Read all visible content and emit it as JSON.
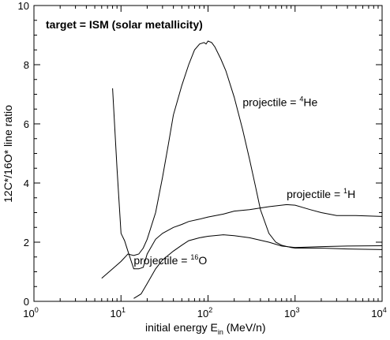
{
  "chart_data": {
    "type": "line",
    "title": "",
    "annotation_title": "target = ISM (solar metallicity)",
    "xlabel_main": "initial energy E",
    "xlabel_sub": "in",
    "xlabel_unit": " (MeV/n)",
    "ylabel": "12C*/16O* line ratio",
    "xscale": "log",
    "xlim": [
      1,
      10000
    ],
    "ylim": [
      0,
      10
    ],
    "x_ticks": [
      {
        "value": 1,
        "base": "10",
        "exp": "0"
      },
      {
        "value": 10,
        "base": "10",
        "exp": "1"
      },
      {
        "value": 100,
        "base": "10",
        "exp": "2"
      },
      {
        "value": 1000,
        "base": "10",
        "exp": "3"
      },
      {
        "value": 10000,
        "base": "10",
        "exp": "4"
      }
    ],
    "y_ticks": [
      {
        "value": 0,
        "label": "0"
      },
      {
        "value": 2,
        "label": "2"
      },
      {
        "value": 4,
        "label": "4"
      },
      {
        "value": 6,
        "label": "6"
      },
      {
        "value": 8,
        "label": "8"
      },
      {
        "value": 10,
        "label": "10"
      }
    ],
    "grid": false,
    "series": [
      {
        "label_prefix": "projectile = ",
        "label_sup": "4",
        "label_suffix": "He",
        "label_at": [
          250,
          6.6
        ],
        "points": [
          [
            6,
            0.78
          ],
          [
            8,
            1.1
          ],
          [
            10,
            1.35
          ],
          [
            12,
            1.6
          ],
          [
            14,
            1.55
          ],
          [
            16,
            1.6
          ],
          [
            18,
            1.8
          ],
          [
            20,
            2.1
          ],
          [
            25,
            3.0
          ],
          [
            30,
            4.2
          ],
          [
            35,
            5.3
          ],
          [
            40,
            6.3
          ],
          [
            50,
            7.3
          ],
          [
            60,
            8.0
          ],
          [
            70,
            8.5
          ],
          [
            80,
            8.7
          ],
          [
            90,
            8.75
          ],
          [
            95,
            8.7
          ],
          [
            100,
            8.8
          ],
          [
            110,
            8.75
          ],
          [
            120,
            8.6
          ],
          [
            140,
            8.2
          ],
          [
            160,
            7.8
          ],
          [
            200,
            6.9
          ],
          [
            250,
            5.8
          ],
          [
            300,
            4.8
          ],
          [
            350,
            3.9
          ],
          [
            400,
            3.1
          ],
          [
            500,
            2.3
          ],
          [
            600,
            2.0
          ],
          [
            700,
            1.9
          ],
          [
            900,
            1.82
          ],
          [
            1000,
            1.8
          ],
          [
            2000,
            1.8
          ],
          [
            4000,
            1.77
          ],
          [
            10000,
            1.75
          ]
        ]
      },
      {
        "label_prefix": "projectile = ",
        "label_sup": "1",
        "label_suffix": "H",
        "label_at": [
          800,
          3.5
        ],
        "points": [
          [
            8,
            7.2
          ],
          [
            9,
            4.5
          ],
          [
            10,
            2.3
          ],
          [
            11,
            2.05
          ],
          [
            12,
            1.7
          ],
          [
            14,
            1.1
          ],
          [
            16,
            1.1
          ],
          [
            18,
            1.15
          ],
          [
            20,
            1.6
          ],
          [
            25,
            2.1
          ],
          [
            30,
            2.3
          ],
          [
            40,
            2.5
          ],
          [
            50,
            2.6
          ],
          [
            60,
            2.7
          ],
          [
            80,
            2.78
          ],
          [
            100,
            2.85
          ],
          [
            150,
            2.95
          ],
          [
            200,
            3.05
          ],
          [
            300,
            3.1
          ],
          [
            500,
            3.2
          ],
          [
            800,
            3.27
          ],
          [
            1000,
            3.25
          ],
          [
            1500,
            3.1
          ],
          [
            2000,
            3.0
          ],
          [
            3000,
            2.9
          ],
          [
            5000,
            2.9
          ],
          [
            10000,
            2.87
          ]
        ]
      },
      {
        "label_prefix": "projectile = ",
        "label_sup": "16",
        "label_suffix": "O",
        "label_at": [
          14,
          1.25
        ],
        "points": [
          [
            14,
            0.1
          ],
          [
            17,
            0.25
          ],
          [
            20,
            0.6
          ],
          [
            25,
            1.1
          ],
          [
            30,
            1.4
          ],
          [
            40,
            1.7
          ],
          [
            50,
            1.9
          ],
          [
            60,
            2.05
          ],
          [
            80,
            2.15
          ],
          [
            100,
            2.2
          ],
          [
            150,
            2.25
          ],
          [
            200,
            2.22
          ],
          [
            300,
            2.15
          ],
          [
            500,
            2.0
          ],
          [
            700,
            1.87
          ],
          [
            1000,
            1.82
          ],
          [
            2000,
            1.85
          ],
          [
            4000,
            1.87
          ],
          [
            10000,
            1.88
          ]
        ]
      }
    ]
  }
}
